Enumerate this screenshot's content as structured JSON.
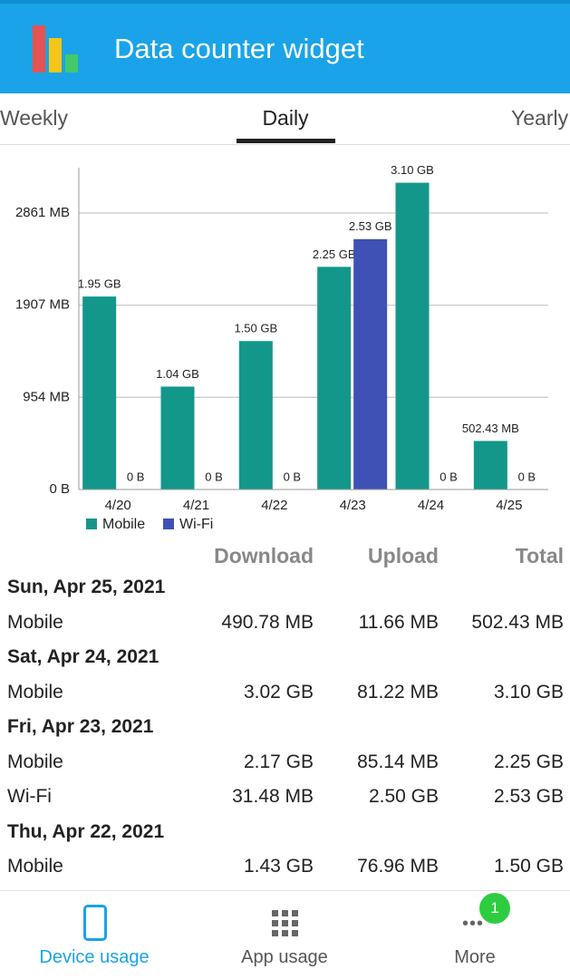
{
  "header": {
    "title": "Data counter widget"
  },
  "tabs": [
    "Weekly",
    "Daily",
    "Yearly"
  ],
  "chart_data": {
    "type": "bar",
    "categories": [
      "4/20",
      "4/21",
      "4/22",
      "4/23",
      "4/24",
      "4/25"
    ],
    "series": [
      {
        "name": "Mobile",
        "color": "#13978a",
        "values": [
          1996.8,
          1064.96,
          1536,
          2304,
          3174.4,
          502.43
        ],
        "value_labels": [
          "1.95 GB",
          "1.04 GB",
          "1.50 GB",
          "2.25 GB",
          "3.10 GB",
          "502.43 MB"
        ]
      },
      {
        "name": "Wi-Fi",
        "color": "#3f51b5",
        "values": [
          0,
          0,
          0,
          2590.72,
          0,
          0
        ],
        "value_labels": [
          "0 B",
          "0 B",
          "0 B",
          "2.53 GB",
          "0 B",
          "0 B"
        ]
      }
    ],
    "ylim": [
      0,
      3330
    ],
    "yticks": [
      {
        "value": 0,
        "label": "0 B"
      },
      {
        "value": 954,
        "label": "954 MB"
      },
      {
        "value": 1907,
        "label": "1907 MB"
      },
      {
        "value": 2861,
        "label": "2861 MB"
      }
    ],
    "grid": true,
    "legend": "bottom-left"
  },
  "table": {
    "headers": [
      "Download",
      "Upload",
      "Total"
    ],
    "days": [
      {
        "date": "Sun, Apr 25, 2021",
        "rows": [
          [
            "Mobile",
            "490.78 MB",
            "11.66 MB",
            "502.43 MB"
          ]
        ]
      },
      {
        "date": "Sat, Apr 24, 2021",
        "rows": [
          [
            "Mobile",
            "3.02 GB",
            "81.22 MB",
            "3.10 GB"
          ]
        ]
      },
      {
        "date": "Fri, Apr 23, 2021",
        "rows": [
          [
            "Mobile",
            "2.17 GB",
            "85.14 MB",
            "2.25 GB"
          ],
          [
            "Wi-Fi",
            "31.48 MB",
            "2.50 GB",
            "2.53 GB"
          ]
        ]
      },
      {
        "date": "Thu, Apr 22, 2021",
        "rows": [
          [
            "Mobile",
            "1.43 GB",
            "76.96 MB",
            "1.50 GB"
          ]
        ]
      }
    ]
  },
  "nav": {
    "items": [
      "Device usage",
      "App usage",
      "More"
    ],
    "badge": "1"
  }
}
